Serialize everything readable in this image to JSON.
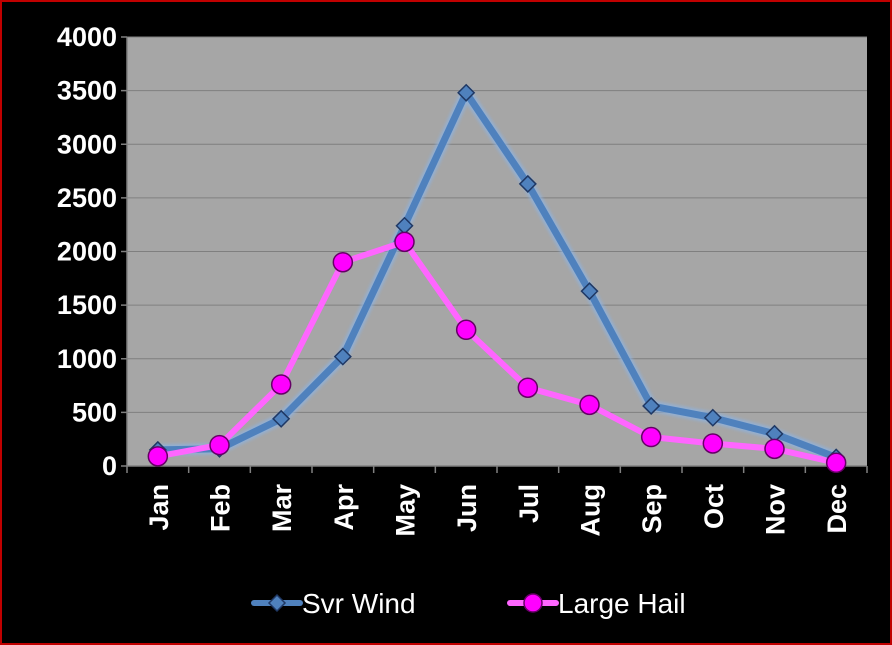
{
  "chart_data": {
    "type": "line",
    "categories": [
      "Jan",
      "Feb",
      "Mar",
      "Apr",
      "May",
      "Jun",
      "Jul",
      "Aug",
      "Sep",
      "Oct",
      "Nov",
      "Dec"
    ],
    "ylim": [
      0,
      4000
    ],
    "yticks": [
      0,
      500,
      1000,
      1500,
      2000,
      2500,
      3000,
      3500,
      4000
    ],
    "grid": true,
    "legend_position": "bottom",
    "plot_background": "#a6a6a6",
    "series": [
      {
        "name": "Svr Wind",
        "marker": "diamond",
        "color": "#4f81bd",
        "values": [
          150,
          160,
          440,
          1020,
          2240,
          3480,
          2630,
          1630,
          560,
          450,
          300,
          80
        ]
      },
      {
        "name": "Large Hail",
        "marker": "circle",
        "color": "#ff00ff",
        "line_color": "#ff66ff",
        "values": [
          90,
          195,
          760,
          1900,
          2090,
          1270,
          730,
          570,
          270,
          210,
          160,
          30
        ]
      }
    ]
  }
}
